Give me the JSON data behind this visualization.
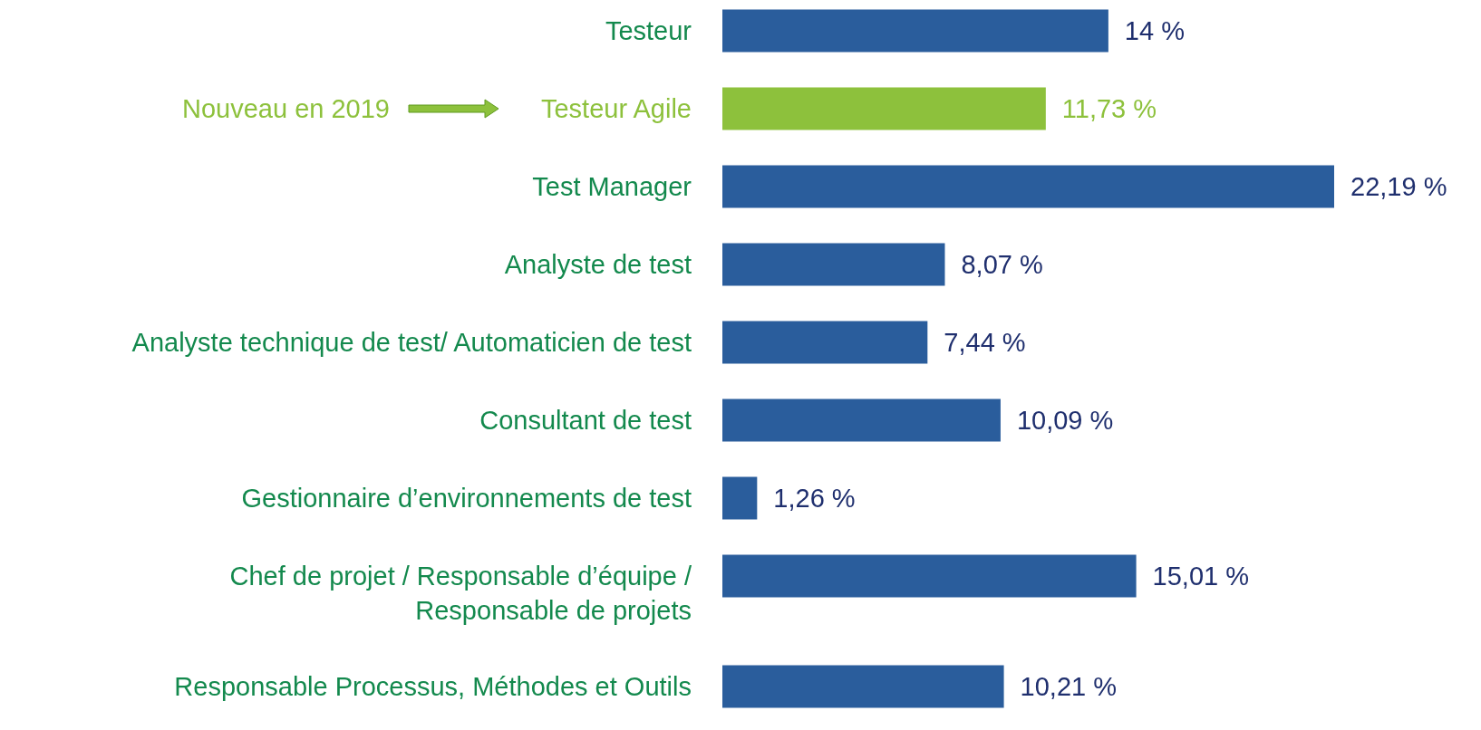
{
  "chart_data": {
    "type": "bar",
    "orientation": "horizontal",
    "color": "#2a5d9c",
    "categories": [
      "Testeur",
      "Testeur Agile",
      "Test Manager",
      "Analyste de test",
      "Analyste technique de test/ Automaticien de test",
      "Consultant de test",
      "Gestionnaire d’environnements de test",
      "Chef de projet / Responsable d’équipe /\nResponsable de projets",
      "Responsable Processus, Méthodes et Outils"
    ],
    "values": [
      14,
      11.73,
      22.19,
      8.07,
      7.44,
      10.09,
      1.26,
      15.01,
      10.21
    ],
    "colors": [
      "#2a5d9c",
      "#8dc13c",
      "#2a5d9c",
      "#2a5d9c",
      "#2a5d9c",
      "#2a5d9c",
      "#2a5d9c",
      "#2a5d9c",
      "#2a5d9c"
    ],
    "value_labels": [
      "14 %",
      "11,73 %",
      "22,19 %",
      "8,07 %",
      "7,44 %",
      "10,09 %",
      "1,26 %",
      "15,01 %",
      "10,21 %"
    ],
    "annotations": [
      "Nouveau en 2019"
    ]
  }
}
